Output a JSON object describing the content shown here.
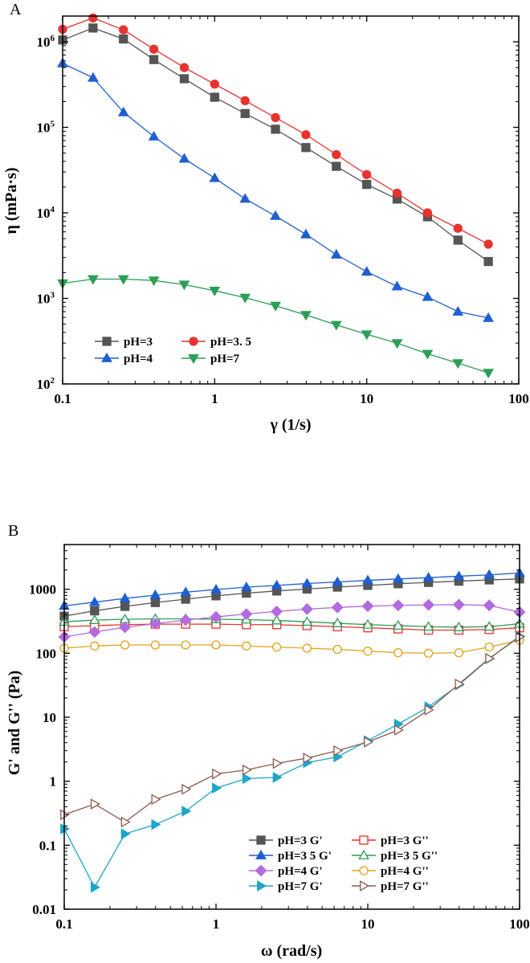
{
  "chart_data": [
    {
      "panel": "A",
      "type": "line",
      "xlabel": "γ (1/s)",
      "ylabel": "η (mPa·s)",
      "xscale": "log",
      "yscale": "log",
      "xlim": [
        0.1,
        100
      ],
      "ylim": [
        100,
        2000000
      ],
      "xticks": [
        {
          "value": 0.1,
          "label": "0.1"
        },
        {
          "value": 1,
          "label": "1"
        },
        {
          "value": 10,
          "label": "10"
        },
        {
          "value": 100,
          "label": "100"
        }
      ],
      "yticks": [
        {
          "value": 100,
          "base": "10",
          "exp": "2"
        },
        {
          "value": 1000,
          "base": "10",
          "exp": "3"
        },
        {
          "value": 10000,
          "base": "10",
          "exp": "4"
        },
        {
          "value": 100000,
          "base": "10",
          "exp": "5"
        },
        {
          "value": 1000000,
          "base": "10",
          "exp": "6"
        }
      ],
      "x": [
        0.1,
        0.1585,
        0.2512,
        0.3981,
        0.631,
        1,
        1.585,
        2.512,
        3.981,
        6.31,
        10,
        15.85,
        25.12,
        39.81,
        63.1,
        100
      ],
      "series": [
        {
          "name": "pH=3",
          "color": "#555555",
          "marker": "square",
          "filled": true,
          "values": [
            1050000,
            1450000,
            1080000,
            620000,
            370000,
            225000,
            145000,
            95000,
            58000,
            35000,
            21500,
            14500,
            9000,
            4800,
            2700,
            null
          ]
        },
        {
          "name": "pH=3. 5",
          "color": "#e8322f",
          "marker": "circle",
          "filled": true,
          "values": [
            1400000,
            1900000,
            1380000,
            820000,
            500000,
            320000,
            205000,
            130000,
            82000,
            48000,
            28000,
            17000,
            10000,
            6600,
            4300,
            null
          ]
        },
        {
          "name": "pH=4",
          "color": "#1f5fd0",
          "marker": "triangle-up",
          "filled": true,
          "values": [
            560000,
            380000,
            150000,
            78000,
            43000,
            25500,
            14600,
            9200,
            5600,
            3250,
            2050,
            1380,
            1040,
            700,
            590,
            null
          ]
        },
        {
          "name": "pH=7",
          "color": "#2c9e57",
          "marker": "triangle-down",
          "filled": true,
          "values": [
            1500,
            1680,
            1680,
            1620,
            1450,
            1230,
            1020,
            820,
            640,
            490,
            380,
            300,
            225,
            175,
            135,
            null
          ]
        }
      ],
      "legend": {
        "position": "bottom-left",
        "columns": 2
      }
    },
    {
      "panel": "B",
      "type": "line",
      "xlabel": "ω (rad/s)",
      "ylabel": "G' and G'' (Pa)",
      "xscale": "log",
      "yscale": "log",
      "xlim": [
        0.1,
        100
      ],
      "ylim": [
        0.01,
        5000
      ],
      "xticks": [
        {
          "value": 0.1,
          "label": "0.1"
        },
        {
          "value": 1,
          "label": "1"
        },
        {
          "value": 10,
          "label": "10"
        },
        {
          "value": 100,
          "label": "100"
        }
      ],
      "yticks": [
        {
          "value": 0.01,
          "label": "0.01"
        },
        {
          "value": 0.1,
          "label": "0.1"
        },
        {
          "value": 1,
          "label": "1"
        },
        {
          "value": 10,
          "label": "10"
        },
        {
          "value": 100,
          "label": "100"
        },
        {
          "value": 1000,
          "label": "1000"
        }
      ],
      "x": [
        0.1,
        0.1585,
        0.2512,
        0.3981,
        0.631,
        1,
        1.585,
        2.512,
        3.981,
        6.31,
        10,
        15.85,
        25.12,
        39.81,
        63.1,
        100
      ],
      "series": [
        {
          "name": "pH=3 G'",
          "color": "#555555",
          "marker": "square",
          "filled": true,
          "values": [
            380,
            460,
            540,
            620,
            700,
            790,
            870,
            940,
            1010,
            1080,
            1150,
            1220,
            1280,
            1340,
            1400,
            1450
          ]
        },
        {
          "name": "pH=3 G''",
          "color": "#e8322f",
          "marker": "square",
          "filled": false,
          "values": [
            260,
            270,
            280,
            285,
            285,
            285,
            280,
            280,
            270,
            260,
            250,
            240,
            230,
            230,
            235,
            250
          ]
        },
        {
          "name": "pH=3 5 G'",
          "color": "#1f5fd0",
          "marker": "triangle-up",
          "filled": true,
          "values": [
            550,
            630,
            720,
            810,
            900,
            990,
            1080,
            1150,
            1230,
            1300,
            1380,
            1450,
            1520,
            1600,
            1680,
            1800
          ]
        },
        {
          "name": "pH=3 5 G''",
          "color": "#2c9e57",
          "marker": "triangle-up",
          "filled": false,
          "values": [
            310,
            330,
            340,
            345,
            345,
            340,
            335,
            325,
            310,
            295,
            280,
            270,
            260,
            255,
            260,
            290
          ]
        },
        {
          "name": "pH=4 G'",
          "color": "#b36ae0",
          "marker": "diamond",
          "filled": true,
          "values": [
            180,
            215,
            255,
            290,
            330,
            370,
            410,
            450,
            490,
            520,
            545,
            560,
            570,
            575,
            560,
            440
          ]
        },
        {
          "name": "pH=4 G''",
          "color": "#e3a21a",
          "marker": "circle",
          "filled": false,
          "values": [
            120,
            130,
            135,
            135,
            135,
            135,
            130,
            125,
            120,
            115,
            108,
            102,
            100,
            102,
            125,
            160
          ]
        },
        {
          "name": "pH=7 G'",
          "color": "#1ea5c9",
          "marker": "triangle-right",
          "filled": true,
          "values": [
            0.18,
            0.022,
            0.15,
            0.21,
            0.34,
            0.78,
            1.1,
            1.15,
            1.95,
            2.4,
            4.3,
            7.8,
            14.5,
            32,
            82,
            185
          ]
        },
        {
          "name": "pH=7 G''",
          "color": "#8b5a4e",
          "marker": "triangle-right",
          "filled": false,
          "values": [
            0.3,
            0.44,
            0.23,
            0.52,
            0.75,
            1.3,
            1.5,
            1.9,
            2.3,
            3.0,
            4.1,
            6.3,
            13,
            33,
            83,
            180
          ]
        }
      ],
      "legend": {
        "position": "bottom-right",
        "columns": 2
      }
    }
  ]
}
